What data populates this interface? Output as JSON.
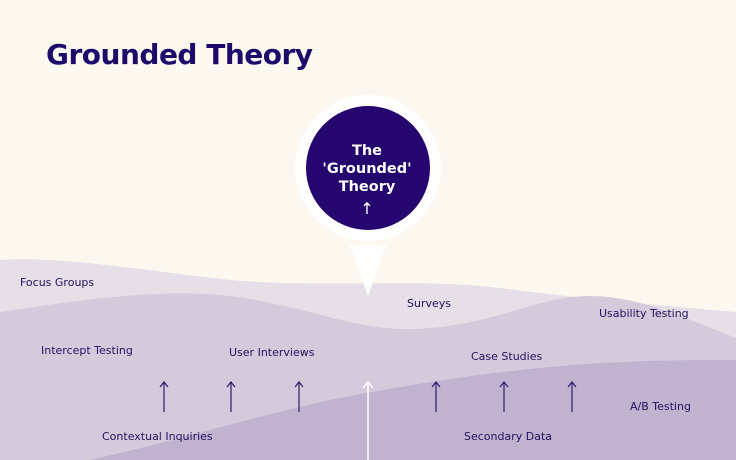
{
  "title": "Grounded Theory",
  "pin": {
    "lines": [
      "The",
      "'Grounded'",
      "Theory"
    ],
    "arrow_icon": "arrow-up-icon"
  },
  "methods": [
    "Focus Groups",
    "Surveys",
    "Usability Testing",
    "Intercept Testing",
    "User Interviews",
    "Case Studies",
    "A/B Testing",
    "Contextual Inquiries",
    "Secondary Data"
  ],
  "colors": {
    "background": "#fcf8f0",
    "title": "#1d0b6b",
    "pin_circle": "#24066e",
    "layer_light": "#e6dfe7",
    "layer_mid": "#d5cadc",
    "layer_dark": "#c1b2cf",
    "arrows": "#2d1a6b"
  }
}
